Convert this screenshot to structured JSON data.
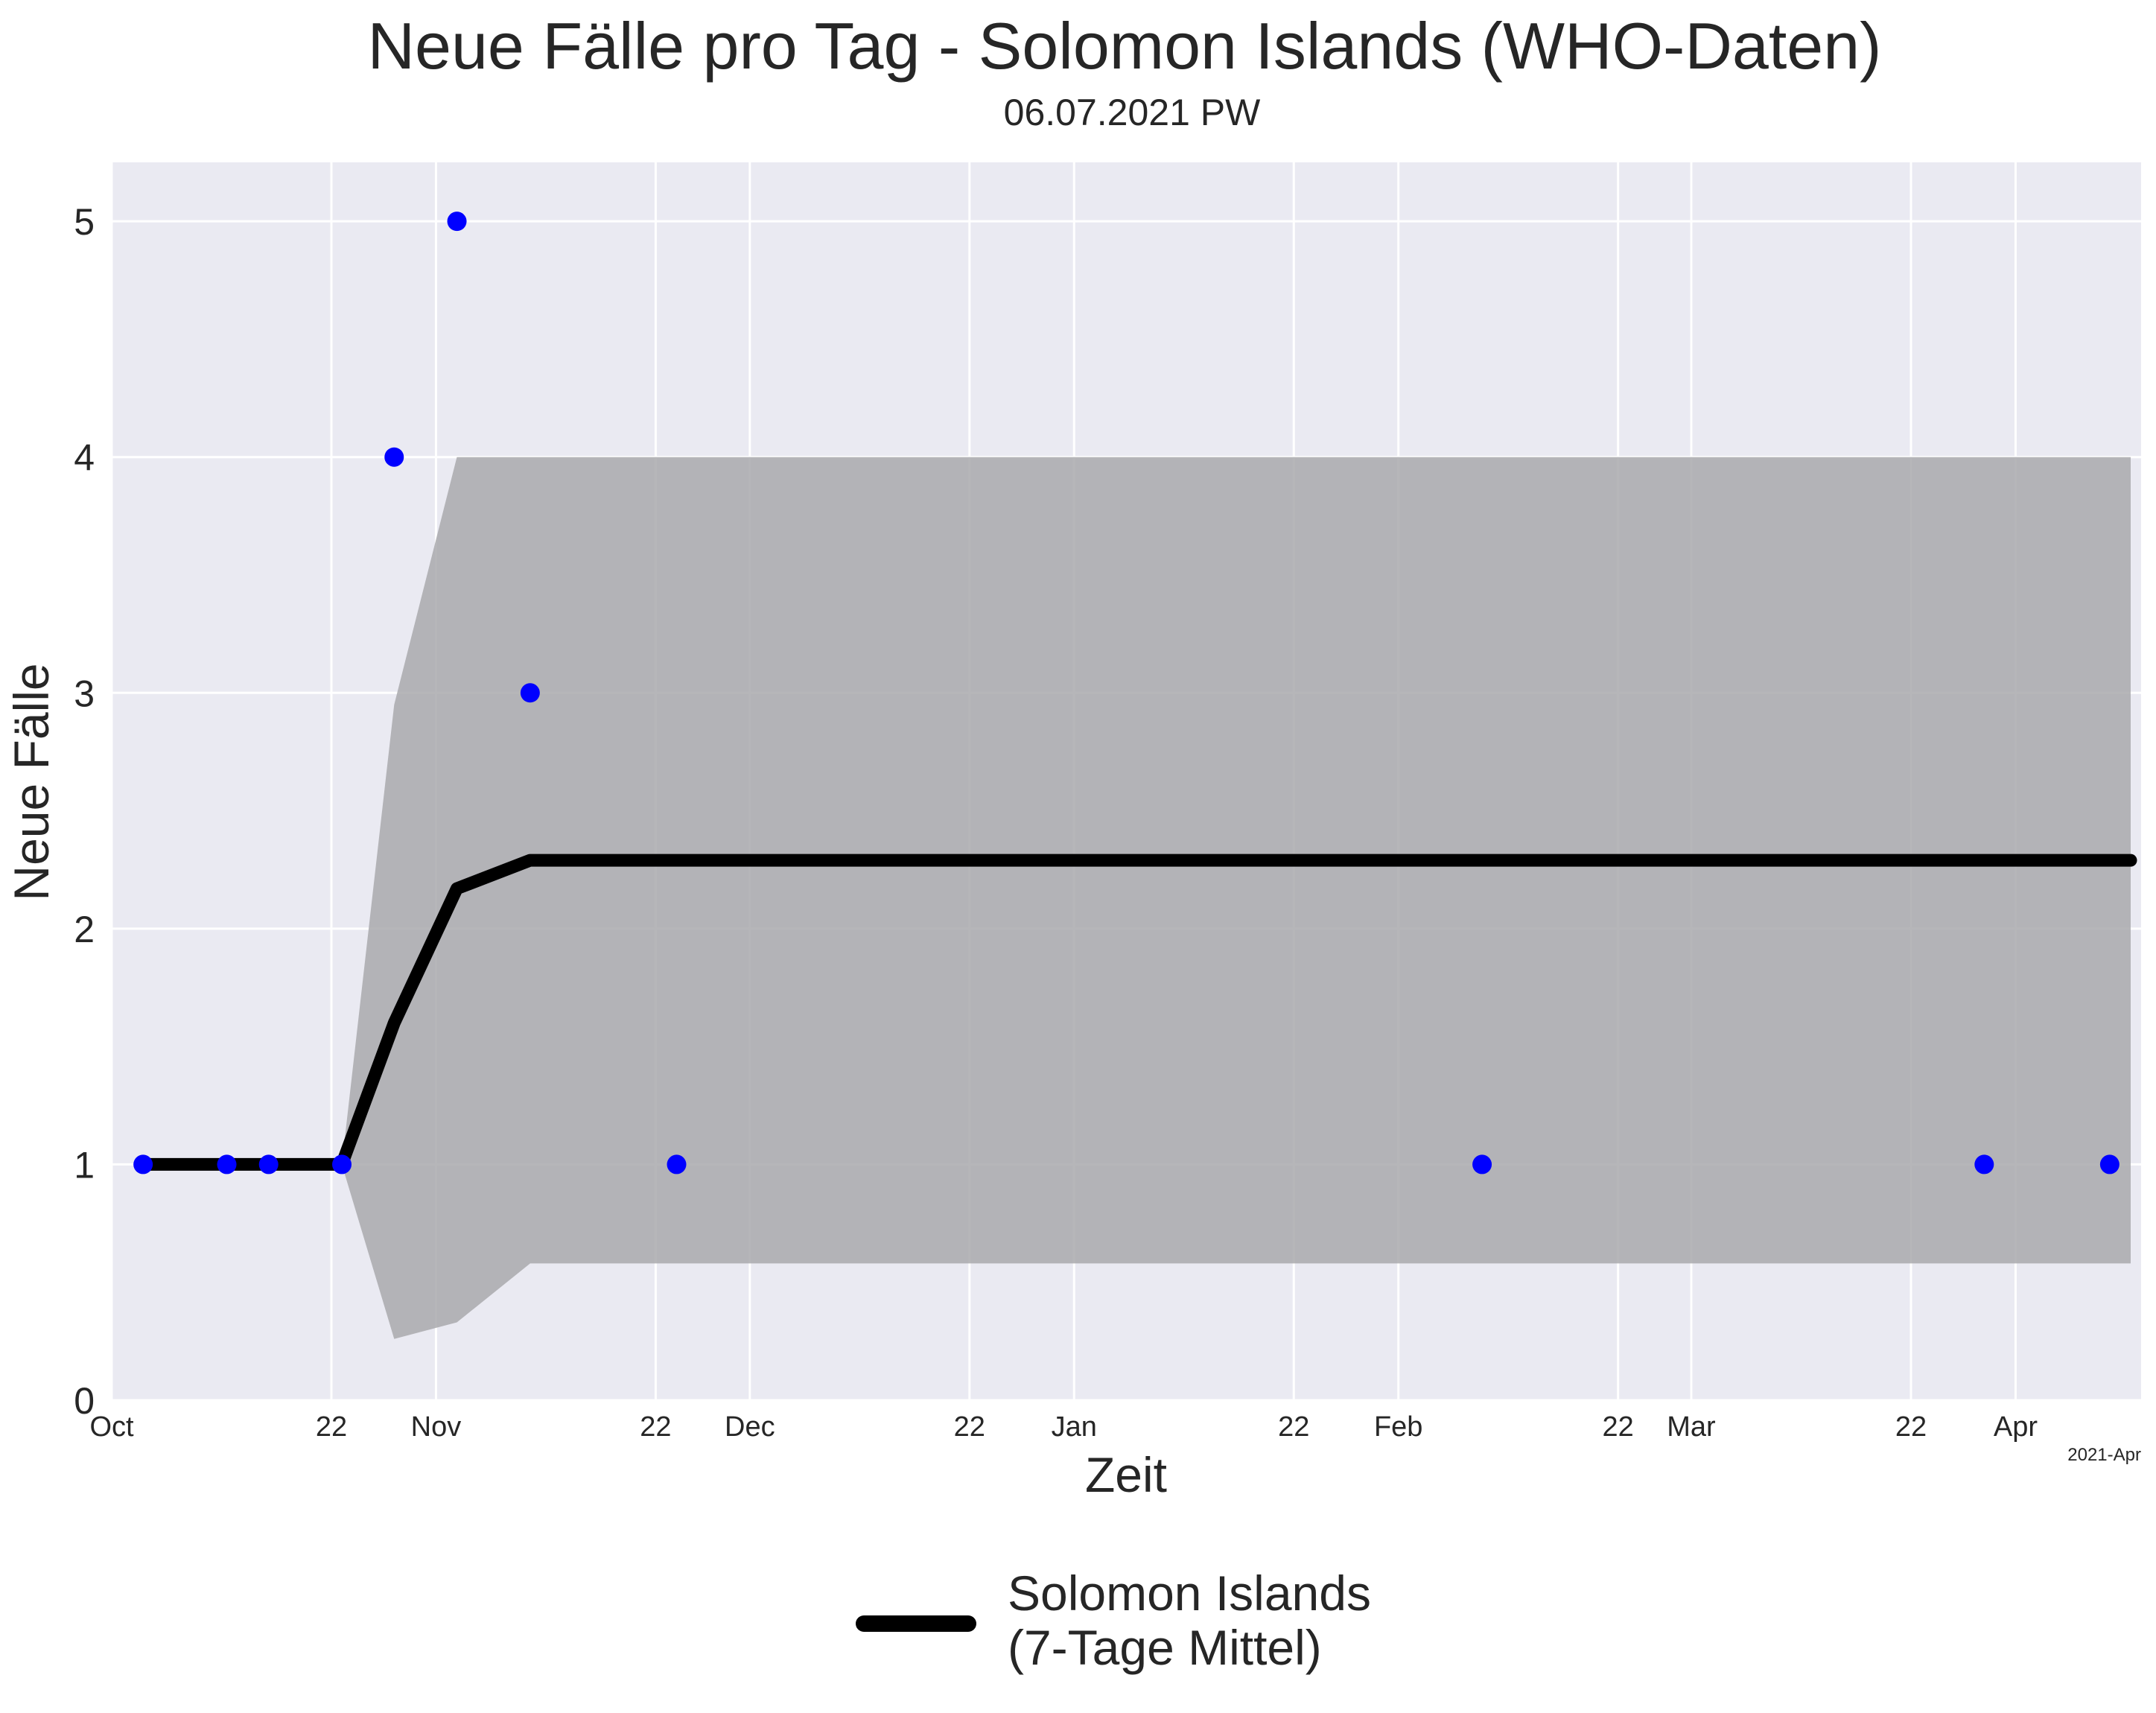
{
  "chart_data": {
    "type": "line",
    "title": "Neue Fälle pro Tag - Solomon Islands (WHO-Daten)",
    "subtitle": "06.07.2021 PW",
    "xlabel": "Zeit",
    "ylabel": "Neue Fälle",
    "x_offset_label": "2021-Apr",
    "xlim": [
      "2020-10-01",
      "2021-04-13"
    ],
    "ylim": [
      0,
      5.25
    ],
    "grid": true,
    "legend_position": "bottom-center",
    "x_ticks": [
      {
        "date": "2020-10-01",
        "label": "Oct"
      },
      {
        "date": "2020-10-22",
        "label": "22"
      },
      {
        "date": "2020-11-01",
        "label": "Nov"
      },
      {
        "date": "2020-11-22",
        "label": "22"
      },
      {
        "date": "2020-12-01",
        "label": "Dec"
      },
      {
        "date": "2020-12-22",
        "label": "22"
      },
      {
        "date": "2021-01-01",
        "label": "Jan"
      },
      {
        "date": "2021-01-22",
        "label": "22"
      },
      {
        "date": "2021-02-01",
        "label": "Feb"
      },
      {
        "date": "2021-02-22",
        "label": "22"
      },
      {
        "date": "2021-03-01",
        "label": "Mar"
      },
      {
        "date": "2021-03-22",
        "label": "22"
      },
      {
        "date": "2021-04-01",
        "label": "Apr"
      }
    ],
    "y_ticks": [
      {
        "value": 0,
        "label": "0"
      },
      {
        "value": 1,
        "label": "1"
      },
      {
        "value": 2,
        "label": "2"
      },
      {
        "value": 3,
        "label": "3"
      },
      {
        "value": 4,
        "label": "4"
      },
      {
        "value": 5,
        "label": "5"
      }
    ],
    "colors": {
      "plot_background": "#eaeaf2",
      "grid": "#ffffff",
      "points": "#0000ff",
      "line": "#000000",
      "band": "#a9a9ad"
    },
    "series": [
      {
        "name": "Solomon Islands\n(7-Tage Mittel)",
        "legend_lines": [
          "Solomon Islands",
          "(7-Tage Mittel)"
        ],
        "type": "line",
        "points": [
          {
            "x": "2020-10-04",
            "y": 1.0
          },
          {
            "x": "2020-10-23",
            "y": 1.0
          },
          {
            "x": "2020-10-28",
            "y": 1.6
          },
          {
            "x": "2020-11-03",
            "y": 2.17
          },
          {
            "x": "2020-11-10",
            "y": 2.29
          },
          {
            "x": "2021-04-12",
            "y": 2.29
          }
        ]
      },
      {
        "type": "band",
        "points": [
          {
            "x": "2020-10-23",
            "low": 1.0,
            "high": 1.0
          },
          {
            "x": "2020-10-28",
            "low": 0.26,
            "high": 2.95
          },
          {
            "x": "2020-11-03",
            "low": 0.33,
            "high": 4.0
          },
          {
            "x": "2020-11-10",
            "low": 0.58,
            "high": 4.0
          },
          {
            "x": "2021-04-12",
            "low": 0.58,
            "high": 4.0
          }
        ]
      },
      {
        "type": "scatter",
        "points": [
          {
            "x": "2020-10-04",
            "y": 1
          },
          {
            "x": "2020-10-12",
            "y": 1
          },
          {
            "x": "2020-10-16",
            "y": 1
          },
          {
            "x": "2020-10-23",
            "y": 1
          },
          {
            "x": "2020-10-28",
            "y": 4
          },
          {
            "x": "2020-11-03",
            "y": 5
          },
          {
            "x": "2020-11-10",
            "y": 3
          },
          {
            "x": "2020-11-24",
            "y": 1
          },
          {
            "x": "2021-02-09",
            "y": 1
          },
          {
            "x": "2021-03-29",
            "y": 1
          },
          {
            "x": "2021-04-10",
            "y": 1
          }
        ]
      }
    ]
  }
}
